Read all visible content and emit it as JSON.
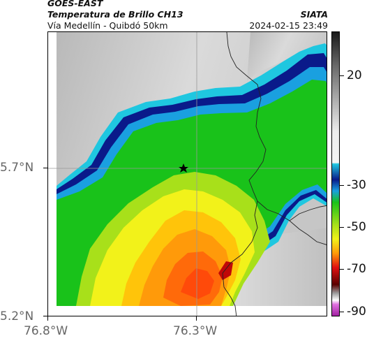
{
  "header": {
    "satellite": "GOES-EAST",
    "product": "Temperatura de Brillo CH13",
    "route": "Vía Medellín - Quibdó 50km",
    "org": "SIATA",
    "datetime": "2024-02-15 23:49"
  },
  "axes": {
    "lat_labels": [
      "5.7°N",
      "5.2°N"
    ],
    "lon_labels": [
      "76.8°W",
      "76.3°W"
    ]
  },
  "colorbar": {
    "labels": [
      "20",
      "-30",
      "-50",
      "-70",
      "-90"
    ],
    "colors": {
      "gray_dark": "#2a2a2a",
      "gray_light": "#ececec",
      "cyan": "#1fc7e0",
      "blue": "#0a1a8a",
      "green": "#19c21a",
      "yellow": "#f2f21a",
      "orange": "#ff9a0a",
      "red": "#e01010",
      "dark_red": "#5a0000",
      "magenta": "#c03cc0"
    }
  },
  "map": {
    "marker_icon": "star-icon"
  }
}
